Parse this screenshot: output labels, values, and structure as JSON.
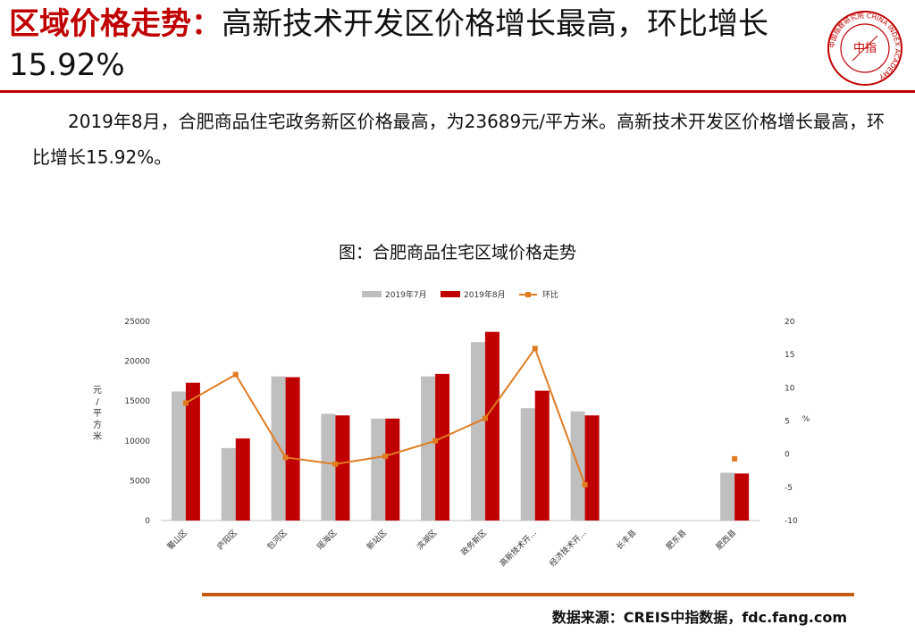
{
  "slide": {
    "title_red": "区域价格走势：",
    "title_rest": "高新技术开发区价格增长最高，环比增长15.92%",
    "paragraph": "2019年8月，合肥商品住宅政务新区价格最高，为23689元/平方米。高新技术开发区价格增长最高，环比增长15.92%。",
    "source": "数据来源：CREIS中指数据，fdc.fang.com"
  },
  "logo": {
    "ring_text": "中国指数研究院 CHINA INDEX ACADEMY",
    "center_text": "中指",
    "color": "#c00000"
  },
  "colors": {
    "accent": "#c00000",
    "rule_bottom": "#c55a11",
    "series_july": "#bfbfbf",
    "series_aug": "#c00000",
    "series_mom": "#e07b20"
  },
  "chart_data": {
    "type": "bar",
    "title": "图：合肥商品住宅区域价格走势",
    "categories": [
      "蜀山区",
      "庐阳区",
      "包河区",
      "瑶海区",
      "新站区",
      "滨湖区",
      "政务新区",
      "高新技术开...",
      "经济技术开...",
      "长丰县",
      "肥东县",
      "肥西县"
    ],
    "series": [
      {
        "name": "2019年7月",
        "type": "bar",
        "axis": "left",
        "values": [
          16200,
          9100,
          18100,
          13400,
          12800,
          18100,
          22400,
          14100,
          13700,
          null,
          null,
          6000
        ]
      },
      {
        "name": "2019年8月",
        "type": "bar",
        "axis": "left",
        "values": [
          17300,
          10300,
          18000,
          13200,
          12800,
          18400,
          23689,
          16300,
          13200,
          null,
          null,
          5900
        ]
      },
      {
        "name": "环比",
        "type": "line",
        "axis": "right",
        "values": [
          7.7,
          12.0,
          -0.5,
          -1.5,
          -0.3,
          2.0,
          5.4,
          15.92,
          -4.6,
          null,
          null,
          -0.7
        ]
      }
    ],
    "ylabel": "元/平方米",
    "ylabel2": "%",
    "ylim": [
      0,
      25000
    ],
    "yticks": [
      "0",
      "5000",
      "10000",
      "15000",
      "20000",
      "25000"
    ],
    "ylim2": [
      -10,
      20
    ],
    "yticks2": [
      "-10",
      "-5",
      "0",
      "5",
      "10",
      "15",
      "20"
    ],
    "legend": "top-center",
    "grid": false
  }
}
